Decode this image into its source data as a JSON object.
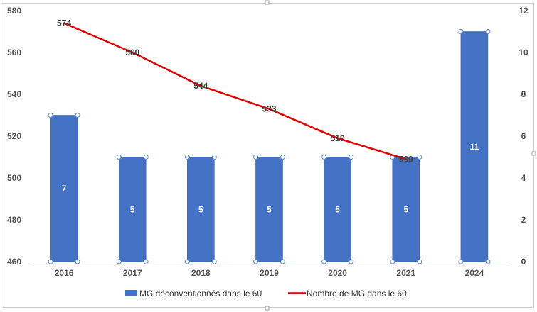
{
  "chart_data": {
    "type": "bar",
    "categories": [
      "2016",
      "2017",
      "2018",
      "2019",
      "2020",
      "2021",
      "2024"
    ],
    "series": [
      {
        "name": "MG déconventionnés dans le 60",
        "type": "bar",
        "axis": "right",
        "values": [
          7,
          5,
          5,
          5,
          5,
          5,
          11
        ],
        "color": "#4472C4"
      },
      {
        "name": "Nombre de MG dans le 60",
        "type": "line",
        "axis": "left",
        "values": [
          574,
          560,
          544,
          533,
          519,
          509,
          null
        ],
        "color": "#E00000"
      }
    ],
    "y_left": {
      "min": 460,
      "max": 580,
      "step": 20
    },
    "y_right": {
      "min": 0,
      "max": 12,
      "step": 2
    },
    "grid": false,
    "legend_position": "bottom"
  }
}
